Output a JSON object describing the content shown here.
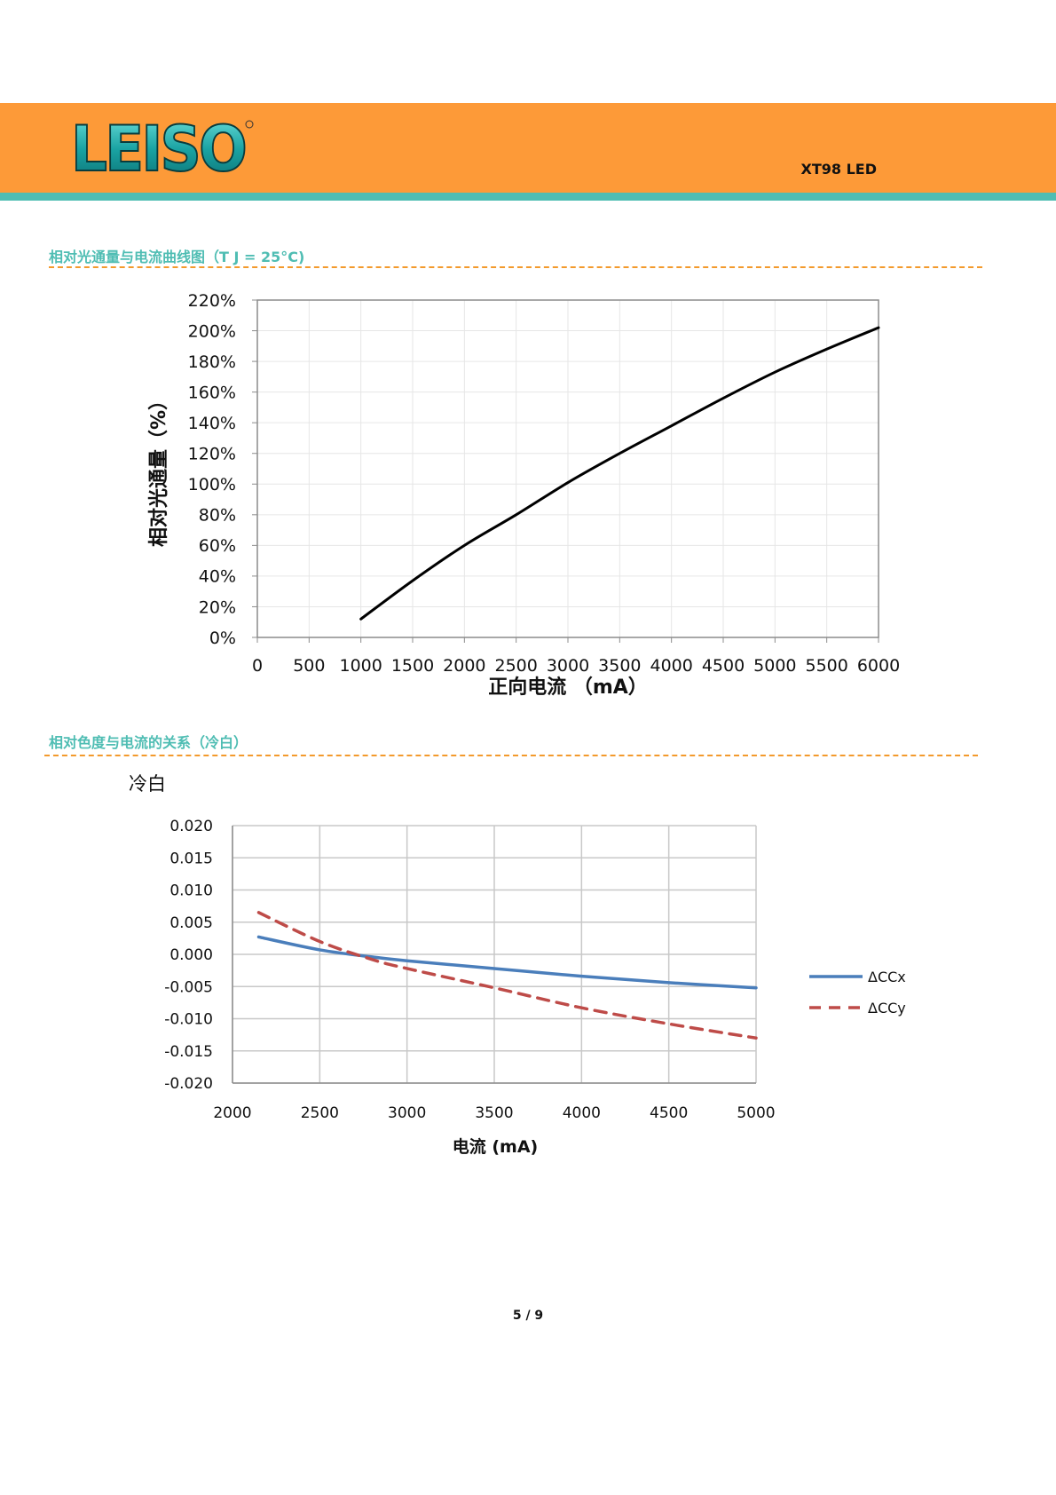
{
  "header": {
    "logo_text": "LEISO",
    "doc_id": "XT98 LED",
    "band_color": "#fd9a38",
    "accent_color": "#4fbdb3"
  },
  "sections": [
    {
      "title": "相对光通量与电流曲线图（T J = 25°C)"
    },
    {
      "title": "相对色度与电流的关系（冷白）"
    }
  ],
  "chart_data": [
    {
      "type": "line",
      "title": "",
      "xlabel": "正向电流 （mA）",
      "ylabel": "相对光通量（%）",
      "xlim": [
        0,
        6000
      ],
      "ylim": [
        0,
        220
      ],
      "x_ticks": [
        "0",
        "500",
        "1000",
        "1500",
        "2000",
        "2500",
        "3000",
        "3500",
        "4000",
        "4500",
        "5000",
        "5500",
        "6000"
      ],
      "y_ticks": [
        "0%",
        "20%",
        "40%",
        "60%",
        "80%",
        "100%",
        "120%",
        "140%",
        "160%",
        "180%",
        "200%",
        "220%"
      ],
      "grid": true,
      "series": [
        {
          "color": "#000000",
          "x": [
            1000,
            1500,
            2000,
            2500,
            3000,
            3500,
            4000,
            4500,
            5000,
            5500,
            6000
          ],
          "y": [
            12,
            37,
            60,
            80,
            101,
            120,
            138,
            156,
            173,
            188,
            202
          ]
        }
      ]
    },
    {
      "type": "line",
      "title": "冷白",
      "xlabel": "电流 (mA)",
      "ylabel": "",
      "xlim": [
        2000,
        5000
      ],
      "ylim": [
        -0.02,
        0.02
      ],
      "x_ticks": [
        "2000",
        "2500",
        "3000",
        "3500",
        "4000",
        "4500",
        "5000"
      ],
      "y_ticks": [
        "0.020",
        "0.015",
        "0.010",
        "0.005",
        "0.000",
        "-0.005",
        "-0.010",
        "-0.015",
        "-0.020"
      ],
      "grid": true,
      "legend": "right",
      "series": [
        {
          "name": "ΔCCx",
          "color": "#4a7ebb",
          "style": "solid",
          "x": [
            2150,
            2500,
            2800,
            3000,
            3500,
            4000,
            4500,
            5000
          ],
          "y": [
            0.0027,
            0.0007,
            -0.0004,
            -0.001,
            -0.0022,
            -0.0034,
            -0.0044,
            -0.0052
          ]
        },
        {
          "name": "ΔCCy",
          "color": "#be4b48",
          "style": "dashed",
          "x": [
            2150,
            2500,
            2800,
            3000,
            3500,
            4000,
            4500,
            5000
          ],
          "y": [
            0.0065,
            0.002,
            -0.0008,
            -0.0022,
            -0.0052,
            -0.0083,
            -0.0108,
            -0.013
          ]
        }
      ]
    }
  ],
  "footer": {
    "page": "5 / 9"
  }
}
